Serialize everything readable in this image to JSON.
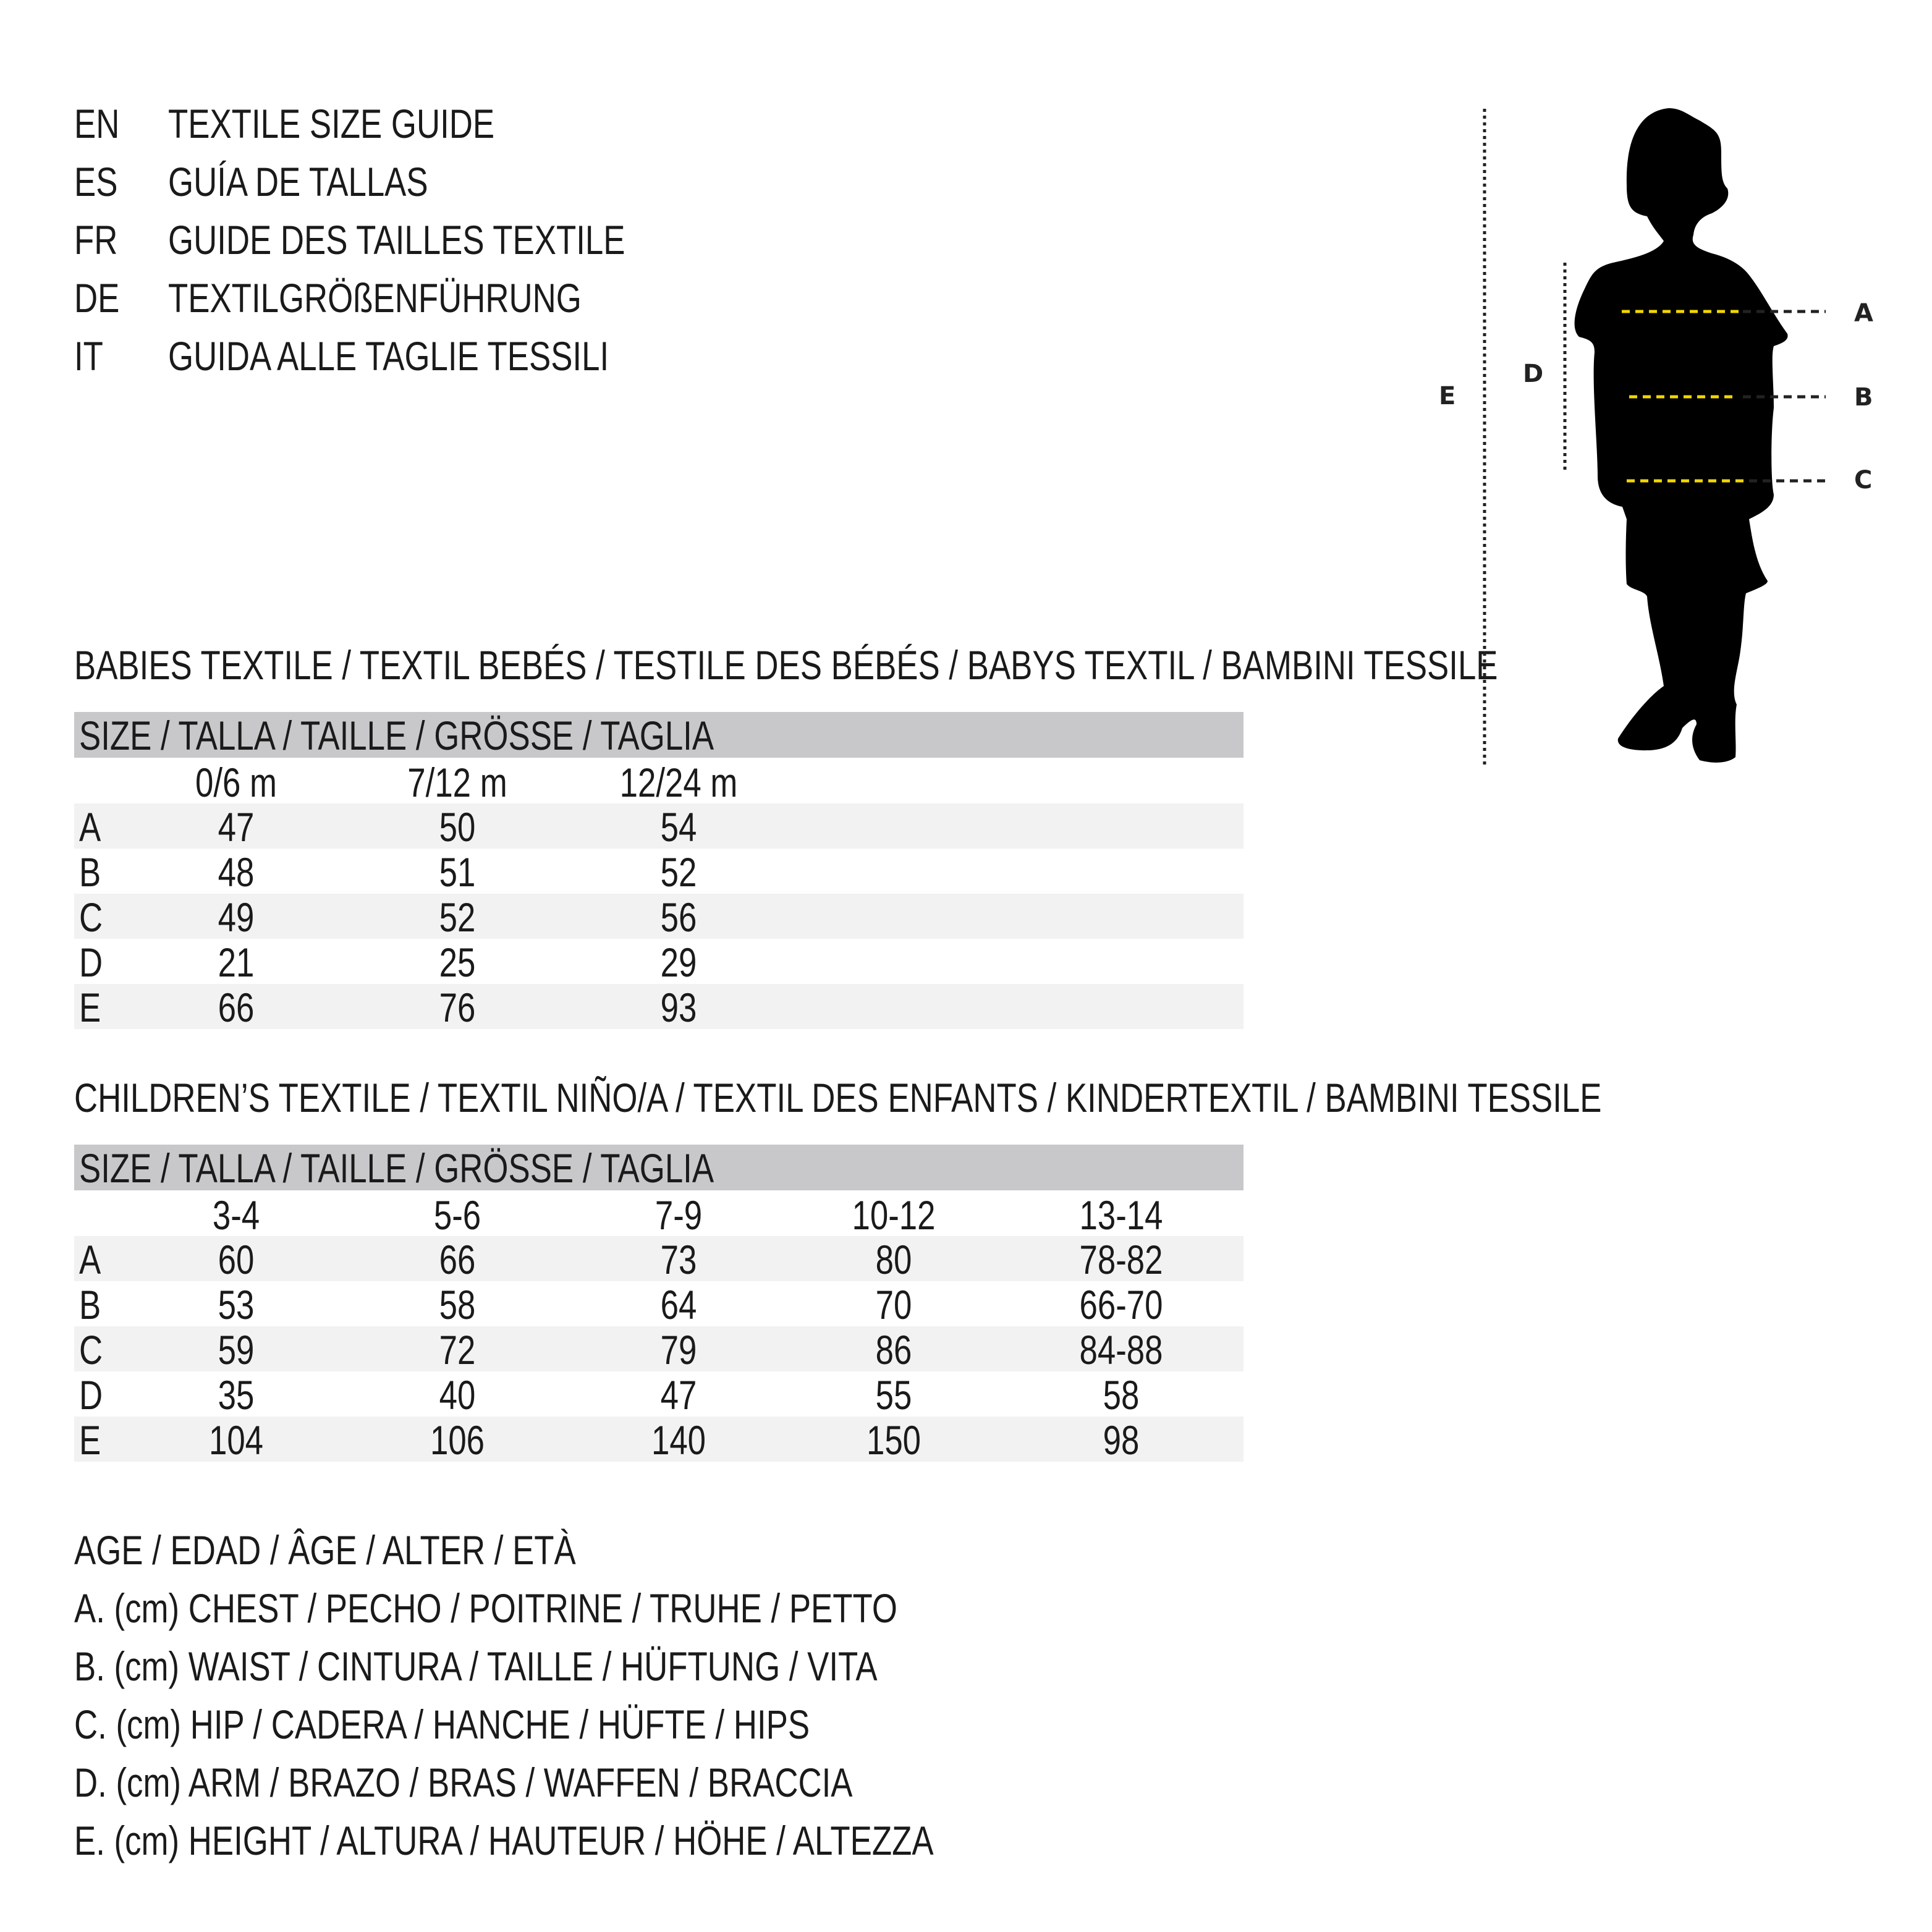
{
  "titles": [
    {
      "code": "EN",
      "text": "TEXTILE SIZE GUIDE"
    },
    {
      "code": "ES",
      "text": "GUÍA DE TALLAS"
    },
    {
      "code": "FR",
      "text": "GUIDE DES TAILLES TEXTILE"
    },
    {
      "code": "DE",
      "text": "TEXTILGRÖßENFÜHRUNG"
    },
    {
      "code": "IT",
      "text": "GUIDA ALLE TAGLIE TESSILI"
    }
  ],
  "babies": {
    "heading": "BABIES TEXTILE / TEXTIL BEBÉS / TESTILE DES BÉBÉS / BABYS TEXTIL / BAMBINI TESSILE",
    "size_label": "SIZE / TALLA / TAILLE / GRÖSSE / TAGLIA",
    "columns": [
      "0/6 m",
      "7/12 m",
      "12/24 m"
    ],
    "rows": [
      {
        "label": "A",
        "values": [
          "47",
          "50",
          "54"
        ]
      },
      {
        "label": "B",
        "values": [
          "48",
          "51",
          "52"
        ]
      },
      {
        "label": "C",
        "values": [
          "49",
          "52",
          "56"
        ]
      },
      {
        "label": "D",
        "values": [
          "21",
          "25",
          "29"
        ]
      },
      {
        "label": "E",
        "values": [
          "66",
          "76",
          "93"
        ]
      }
    ]
  },
  "children": {
    "heading": "CHILDREN’S TEXTILE / TEXTIL NIÑO/A / TEXTIL DES ENFANTS / KINDERTEXTIL / BAMBINI TESSILE",
    "size_label": "SIZE / TALLA / TAILLE / GRÖSSE / TAGLIA",
    "columns": [
      "3-4",
      "5-6",
      "7-9",
      "10-12",
      "13-14"
    ],
    "rows": [
      {
        "label": "A",
        "values": [
          "60",
          "66",
          "73",
          "80",
          "78-82"
        ]
      },
      {
        "label": "B",
        "values": [
          "53",
          "58",
          "64",
          "70",
          "66-70"
        ]
      },
      {
        "label": "C",
        "values": [
          "59",
          "72",
          "79",
          "86",
          "84-88"
        ]
      },
      {
        "label": "D",
        "values": [
          "35",
          "40",
          "47",
          "55",
          "58"
        ]
      },
      {
        "label": "E",
        "values": [
          "104",
          "106",
          "140",
          "150",
          "98"
        ]
      }
    ]
  },
  "legend": [
    "AGE / EDAD / ÂGE / ALTER / ETÀ",
    "A. (cm) CHEST / PECHO / POITRINE / TRUHE / PETTO",
    "B. (cm) WAIST / CINTURA / TAILLE / HÜFTUNG / VITA",
    "C. (cm) HIP / CADERA / HANCHE / HÜFTE / HIPS",
    "D. (cm) ARM / BRAZO / BRAS / WAFFEN / BRACCIA",
    "E. (cm) HEIGHT / ALTURA / HAUTEUR / HÖHE / ALTEZZA"
  ],
  "figure": {
    "labels": {
      "A": "A",
      "B": "B",
      "C": "C",
      "D": "D",
      "E": "E"
    },
    "highlight_color": "#f2d600"
  }
}
